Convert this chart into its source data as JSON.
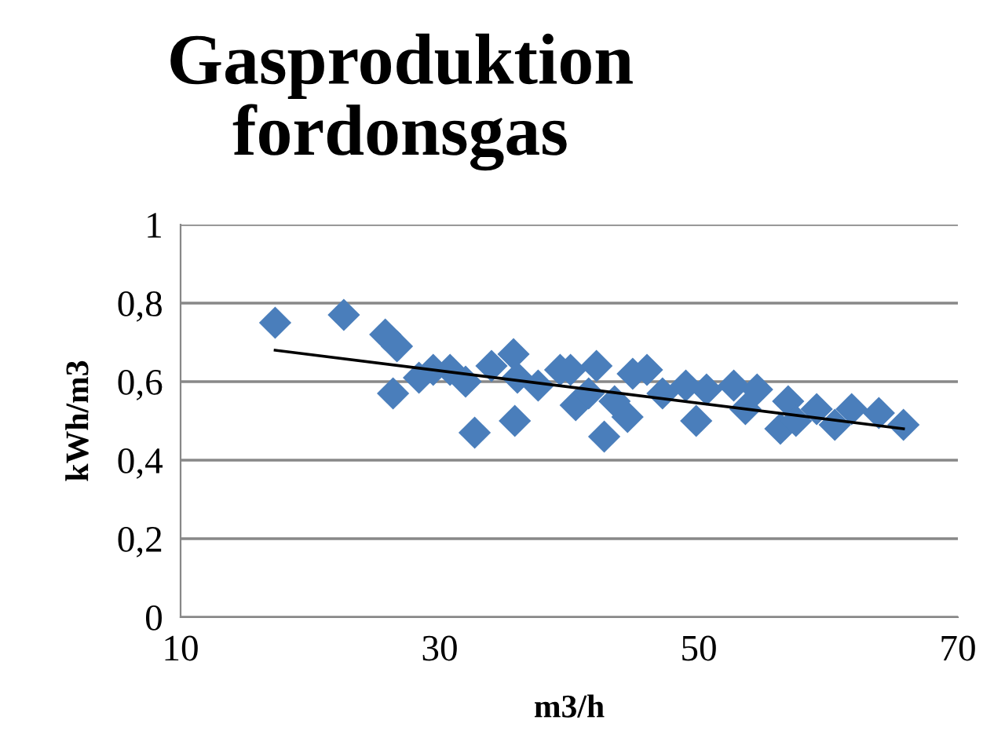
{
  "chart_data": {
    "type": "scatter",
    "title": "Gasproduktion\nfordonsgas",
    "xlabel": "m3/h",
    "ylabel": "kWh/m3",
    "xlim": [
      10,
      70
    ],
    "xticks": [
      10,
      30,
      50,
      70
    ],
    "ylim": [
      0,
      1
    ],
    "yticks": [
      {
        "value": 0,
        "label": "0"
      },
      {
        "value": 0.2,
        "label": "0,2"
      },
      {
        "value": 0.4,
        "label": "0,4"
      },
      {
        "value": 0.6,
        "label": "0,6"
      },
      {
        "value": 0.8,
        "label": "0,8"
      },
      {
        "value": 1,
        "label": "1"
      }
    ],
    "grid": "y",
    "legend": false,
    "series": [
      {
        "marker": "diamond",
        "color": "#4a7ebb",
        "x": [
          17.3,
          22.6,
          25.8,
          26.7,
          26.4,
          28.4,
          29.5,
          30.8,
          32.0,
          32.7,
          34.0,
          35.7,
          35.8,
          36.0,
          37.6,
          39.3,
          40.1,
          40.5,
          41.5,
          42.1,
          42.7,
          43.5,
          44.5,
          44.9,
          46.0,
          47.2,
          49.0,
          49.8,
          50.6,
          52.7,
          53.6,
          54.5,
          56.3,
          56.9,
          57.5,
          59.1,
          60.5,
          61.8,
          63.9,
          65.8
        ],
        "values": [
          0.75,
          0.77,
          0.72,
          0.69,
          0.57,
          0.61,
          0.63,
          0.63,
          0.6,
          0.47,
          0.64,
          0.67,
          0.5,
          0.61,
          0.59,
          0.63,
          0.63,
          0.54,
          0.57,
          0.64,
          0.46,
          0.55,
          0.51,
          0.62,
          0.63,
          0.57,
          0.59,
          0.5,
          0.58,
          0.59,
          0.53,
          0.58,
          0.48,
          0.55,
          0.5,
          0.53,
          0.49,
          0.53,
          0.52,
          0.49
        ]
      },
      {
        "type": "line",
        "marker": "none",
        "line_style": "solid",
        "color": "#000000",
        "x": [
          17.3,
          65.8
        ],
        "values": [
          0.68,
          0.48
        ]
      }
    ]
  }
}
